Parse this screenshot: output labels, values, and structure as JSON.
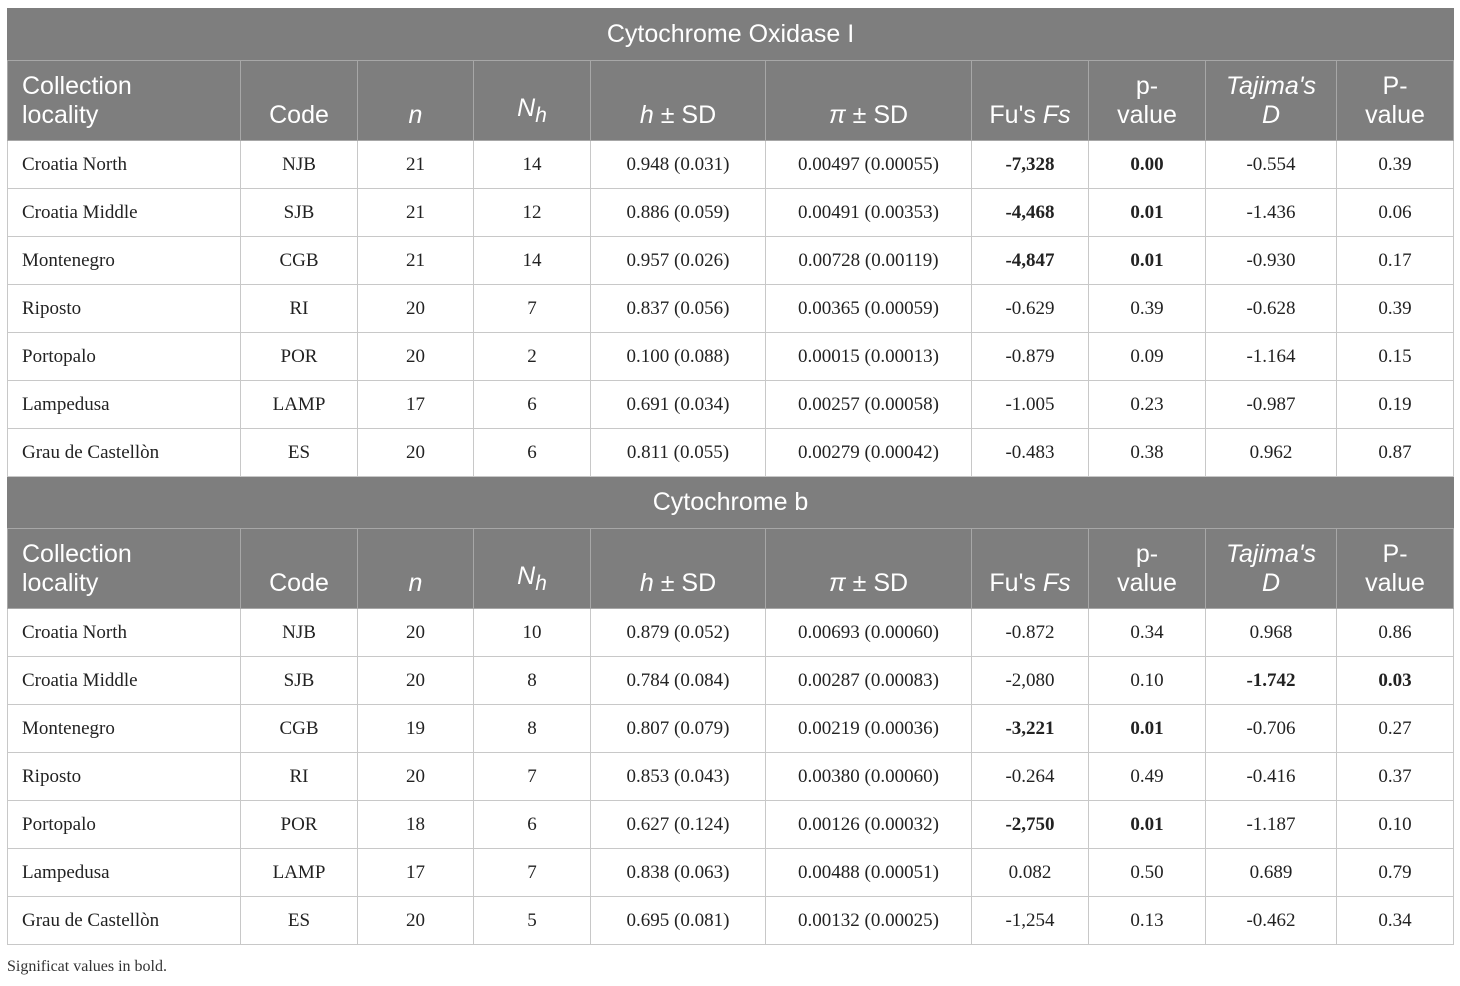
{
  "headers": {
    "locality": [
      "Collection",
      "locality"
    ],
    "code": "Code",
    "n": "n",
    "nh_main": "N",
    "nh_sub": "h",
    "h_var": "h",
    "h_rest": " ± SD",
    "pi_var": "π",
    "pi_rest": " ± SD",
    "fu_prefix": "Fu's ",
    "fu_var": "Fs",
    "pvalue_lower": [
      "p-",
      "value"
    ],
    "tajima": [
      "Tajima's",
      "D"
    ],
    "pvalue_upper": [
      "P-",
      "value"
    ]
  },
  "sections": [
    {
      "title": "Cytochrome Oxidase I",
      "rows": [
        {
          "locality": "Croatia North",
          "code": "NJB",
          "n": "21",
          "nh": "14",
          "h": "0.948 (0.031)",
          "pi": "0.00497 (0.00055)",
          "fs": "-7,328",
          "fs_p": "0.00",
          "tajima_d": "-0.554",
          "d_p": "0.39",
          "bold": [
            "fs",
            "fs_p"
          ]
        },
        {
          "locality": "Croatia Middle",
          "code": "SJB",
          "n": "21",
          "nh": "12",
          "h": "0.886 (0.059)",
          "pi": "0.00491 (0.00353)",
          "fs": "-4,468",
          "fs_p": "0.01",
          "tajima_d": "-1.436",
          "d_p": "0.06",
          "bold": [
            "fs",
            "fs_p"
          ]
        },
        {
          "locality": "Montenegro",
          "code": "CGB",
          "n": "21",
          "nh": "14",
          "h": "0.957 (0.026)",
          "pi": "0.00728 (0.00119)",
          "fs": "-4,847",
          "fs_p": "0.01",
          "tajima_d": "-0.930",
          "d_p": "0.17",
          "bold": [
            "fs",
            "fs_p"
          ]
        },
        {
          "locality": "Riposto",
          "code": "RI",
          "n": "20",
          "nh": "7",
          "h": "0.837 (0.056)",
          "pi": "0.00365 (0.00059)",
          "fs": "-0.629",
          "fs_p": "0.39",
          "tajima_d": "-0.628",
          "d_p": "0.39",
          "bold": []
        },
        {
          "locality": "Portopalo",
          "code": "POR",
          "n": "20",
          "nh": "2",
          "h": "0.100 (0.088)",
          "pi": "0.00015 (0.00013)",
          "fs": "-0.879",
          "fs_p": "0.09",
          "tajima_d": "-1.164",
          "d_p": "0.15",
          "bold": []
        },
        {
          "locality": "Lampedusa",
          "code": "LAMP",
          "n": "17",
          "nh": "6",
          "h": "0.691 (0.034)",
          "pi": "0.00257 (0.00058)",
          "fs": "-1.005",
          "fs_p": "0.23",
          "tajima_d": "-0.987",
          "d_p": "0.19",
          "bold": []
        },
        {
          "locality": "Grau de Castellòn",
          "code": "ES",
          "n": "20",
          "nh": "6",
          "h": "0.811 (0.055)",
          "pi": "0.00279 (0.00042)",
          "fs": "-0.483",
          "fs_p": "0.38",
          "tajima_d": "0.962",
          "d_p": "0.87",
          "bold": []
        }
      ]
    },
    {
      "title": "Cytochrome b",
      "rows": [
        {
          "locality": "Croatia North",
          "code": "NJB",
          "n": "20",
          "nh": "10",
          "h": "0.879 (0.052)",
          "pi": "0.00693 (0.00060)",
          "fs": "-0.872",
          "fs_p": "0.34",
          "tajima_d": "0.968",
          "d_p": "0.86",
          "bold": []
        },
        {
          "locality": "Croatia Middle",
          "code": "SJB",
          "n": "20",
          "nh": "8",
          "h": "0.784 (0.084)",
          "pi": "0.00287 (0.00083)",
          "fs": "-2,080",
          "fs_p": "0.10",
          "tajima_d": "-1.742",
          "d_p": "0.03",
          "bold": [
            "tajima_d",
            "d_p"
          ]
        },
        {
          "locality": "Montenegro",
          "code": "CGB",
          "n": "19",
          "nh": "8",
          "h": "0.807 (0.079)",
          "pi": "0.00219 (0.00036)",
          "fs": "-3,221",
          "fs_p": "0.01",
          "tajima_d": "-0.706",
          "d_p": "0.27",
          "bold": [
            "fs",
            "fs_p"
          ]
        },
        {
          "locality": "Riposto",
          "code": "RI",
          "n": "20",
          "nh": "7",
          "h": "0.853 (0.043)",
          "pi": "0.00380 (0.00060)",
          "fs": "-0.264",
          "fs_p": "0.49",
          "tajima_d": "-0.416",
          "d_p": "0.37",
          "bold": []
        },
        {
          "locality": "Portopalo",
          "code": "POR",
          "n": "18",
          "nh": "6",
          "h": "0.627 (0.124)",
          "pi": "0.00126 (0.00032)",
          "fs": "-2,750",
          "fs_p": "0.01",
          "tajima_d": "-1.187",
          "d_p": "0.10",
          "bold": [
            "fs",
            "fs_p"
          ]
        },
        {
          "locality": "Lampedusa",
          "code": "LAMP",
          "n": "17",
          "nh": "7",
          "h": "0.838 (0.063)",
          "pi": "0.00488 (0.00051)",
          "fs": "0.082",
          "fs_p": "0.50",
          "tajima_d": "0.689",
          "d_p": "0.79",
          "bold": []
        },
        {
          "locality": "Grau de Castellòn",
          "code": "ES",
          "n": "20",
          "nh": "5",
          "h": "0.695 (0.081)",
          "pi": "0.00132 (0.00025)",
          "fs": "-1,254",
          "fs_p": "0.13",
          "tajima_d": "-0.462",
          "d_p": "0.34",
          "bold": []
        }
      ]
    }
  ],
  "footnote": "Significat values in bold."
}
